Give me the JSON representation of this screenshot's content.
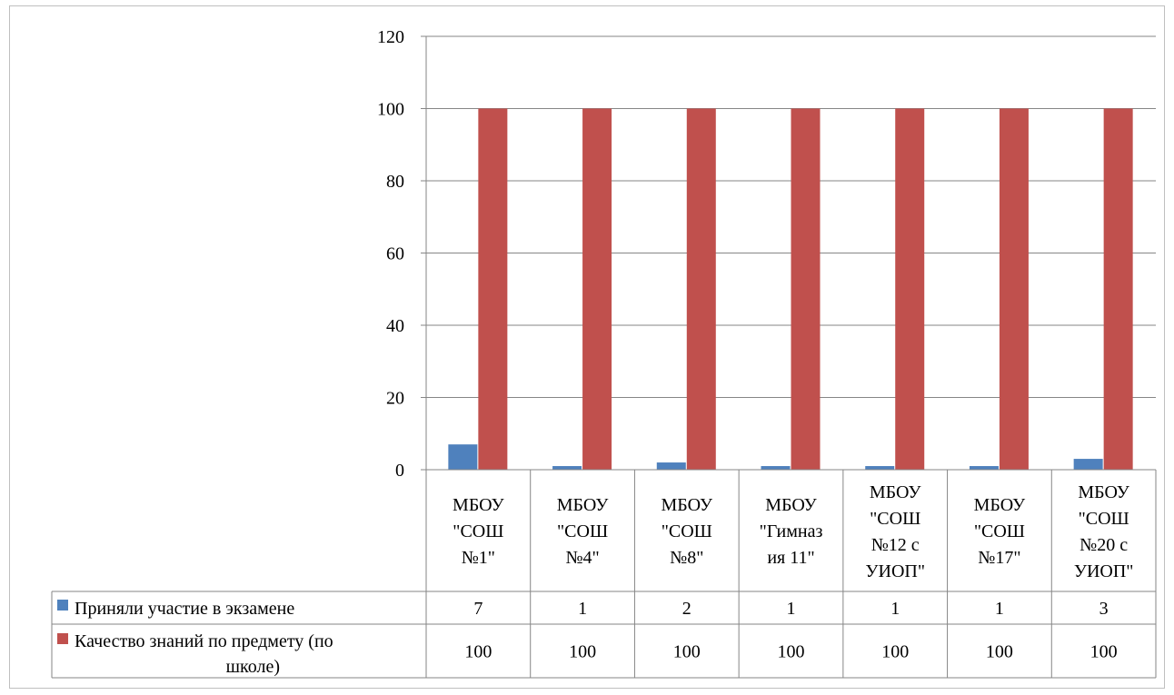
{
  "chart_data": {
    "type": "bar",
    "title": "",
    "categories": [
      [
        "МБОУ",
        "\"СОШ",
        "№1\""
      ],
      [
        "МБОУ",
        "\"СОШ",
        "№4\""
      ],
      [
        "МБОУ",
        "\"СОШ",
        "№8\""
      ],
      [
        "МБОУ",
        "\"Гимназ",
        "ия 11\""
      ],
      [
        "МБОУ",
        "\"СОШ",
        "№12 с",
        "УИОП\""
      ],
      [
        "МБОУ",
        "\"СОШ",
        "№17\""
      ],
      [
        "МБОУ",
        "\"СОШ",
        "№20 с",
        "УИОП\""
      ]
    ],
    "series": [
      {
        "name": "Приняли участие в экзамене",
        "name_lines": [
          "Приняли участие в экзамене"
        ],
        "color": "#4f81bd",
        "values": [
          7,
          1,
          2,
          1,
          1,
          1,
          3
        ]
      },
      {
        "name": "Качество знаний по предмету (по школе)",
        "name_lines": [
          "Качество знаний по предмету (по",
          "школе)"
        ],
        "color": "#c0504d",
        "values": [
          100,
          100,
          100,
          100,
          100,
          100,
          100
        ]
      }
    ],
    "ylim": [
      0,
      120
    ],
    "yticks": [
      0,
      20,
      40,
      60,
      80,
      100,
      120
    ],
    "grid": true,
    "legend": "data-table"
  }
}
